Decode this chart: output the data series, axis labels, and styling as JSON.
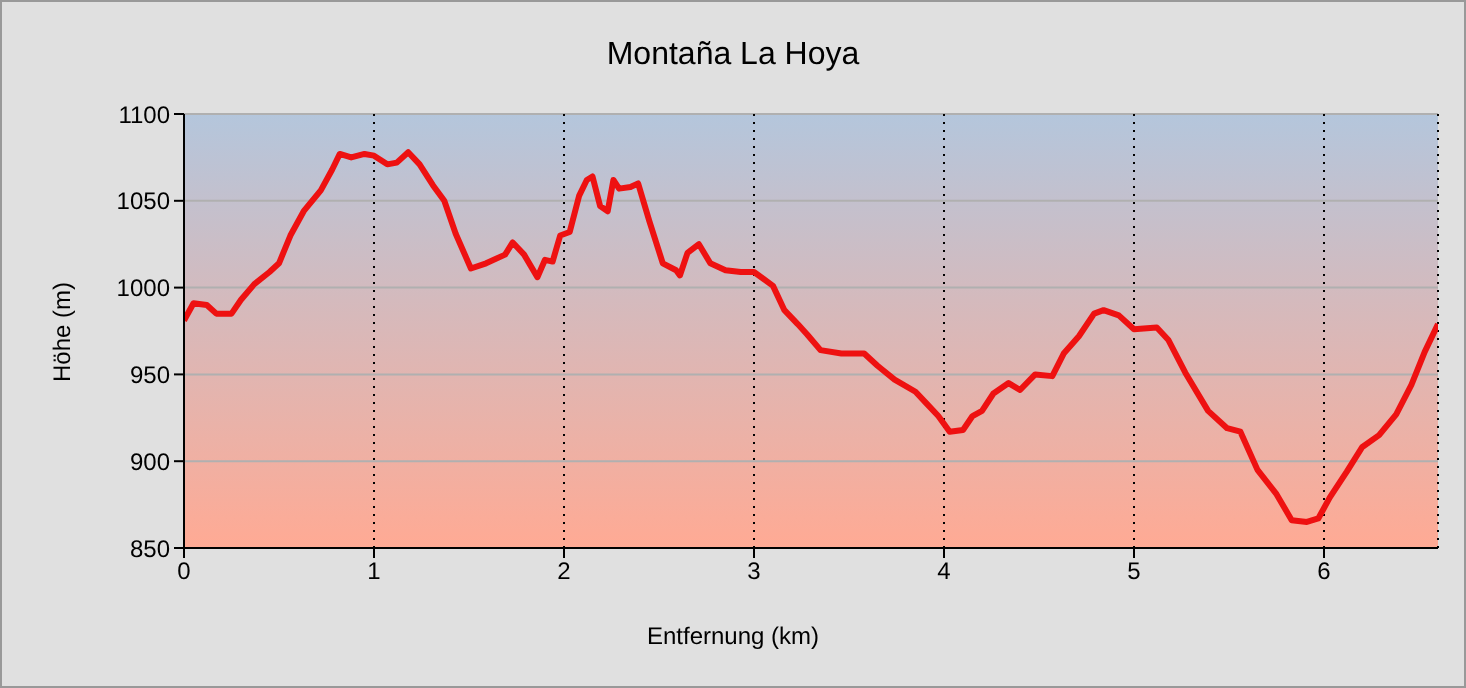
{
  "chart_data": {
    "type": "line",
    "title": "Montaña La Hoya",
    "xlabel": "Entfernung (km)",
    "ylabel": "Höhe (m)",
    "x": [
      0,
      0.05,
      0.12,
      0.17,
      0.25,
      0.3,
      0.37,
      0.45,
      0.5,
      0.56,
      0.63,
      0.72,
      0.78,
      0.82,
      0.88,
      0.95,
      1.0,
      1.07,
      1.12,
      1.18,
      1.24,
      1.31,
      1.37,
      1.43,
      1.51,
      1.59,
      1.69,
      1.73,
      1.79,
      1.86,
      1.9,
      1.94,
      1.98,
      2.03,
      2.08,
      2.12,
      2.15,
      2.19,
      2.23,
      2.26,
      2.29,
      2.35,
      2.39,
      2.45,
      2.52,
      2.59,
      2.61,
      2.65,
      2.71,
      2.77,
      2.85,
      2.93,
      3.0,
      3.1,
      3.16,
      3.23,
      3.28,
      3.35,
      3.46,
      3.58,
      3.65,
      3.74,
      3.85,
      3.91,
      3.97,
      4.03,
      4.1,
      4.15,
      4.2,
      4.26,
      4.34,
      4.4,
      4.48,
      4.57,
      4.63,
      4.71,
      4.79,
      4.84,
      4.92,
      5.0,
      5.12,
      5.18,
      5.27,
      5.39,
      5.49,
      5.56,
      5.65,
      5.75,
      5.83,
      5.91,
      5.97,
      6.03,
      6.12,
      6.2,
      6.29,
      6.38,
      6.46,
      6.53,
      6.6
    ],
    "series": [
      {
        "color": "#ee1111",
        "values": [
          981,
          991,
          990,
          985,
          985,
          993,
          1002,
          1009,
          1014,
          1030,
          1044,
          1056,
          1068,
          1077,
          1075,
          1077,
          1076,
          1071,
          1072,
          1078,
          1071,
          1059,
          1050,
          1031,
          1011,
          1014,
          1019,
          1026,
          1019,
          1006,
          1016,
          1015,
          1030,
          1032,
          1053,
          1062,
          1064,
          1047,
          1044,
          1062,
          1057,
          1058,
          1060,
          1038,
          1014,
          1010,
          1007,
          1020,
          1025,
          1014,
          1010,
          1009,
          1009,
          1001,
          987,
          979,
          973,
          964,
          962,
          962,
          955,
          947,
          940,
          933,
          926,
          917,
          918,
          926,
          929,
          939,
          945,
          941,
          950,
          949,
          962,
          972,
          985,
          987,
          984,
          976,
          977,
          970,
          951,
          929,
          919,
          917,
          895,
          881,
          866,
          865,
          867,
          879,
          894,
          908,
          915,
          927,
          944,
          963,
          979
        ]
      }
    ],
    "xlim": [
      0,
      6.6
    ],
    "xticks": [
      0,
      1,
      2,
      3,
      4,
      5,
      6
    ],
    "ylim": [
      850,
      1100
    ],
    "yticks": [
      850,
      900,
      950,
      1000,
      1050,
      1100
    ],
    "grid": true,
    "legend": false,
    "marker": "none",
    "line_style": "solid"
  }
}
